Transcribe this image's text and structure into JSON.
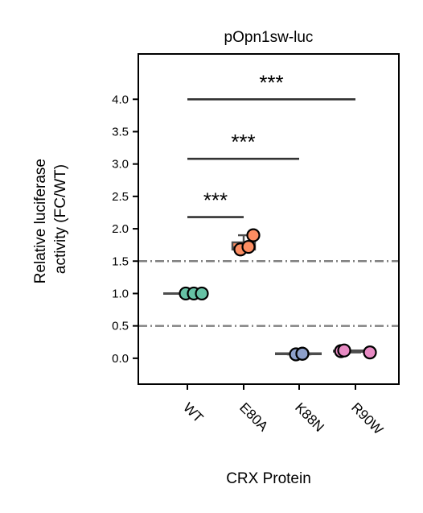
{
  "chart_data": {
    "type": "box",
    "title": "pOpn1sw-luc",
    "xlabel": "CRX Protein",
    "ylabel_lines": [
      "Relative luciferase",
      "activity (FC/WT)"
    ],
    "categories": [
      "WT",
      "E80A",
      "K88N",
      "R90W"
    ],
    "colors": [
      "#66c2a5",
      "#fc8d62",
      "#8da0cb",
      "#e78ac3"
    ],
    "points": [
      [
        1.0,
        1.0,
        1.0
      ],
      [
        1.68,
        1.72,
        1.9
      ],
      [
        0.06,
        0.07,
        0.07
      ],
      [
        0.11,
        0.12,
        0.09
      ]
    ],
    "boxes": [
      {
        "q1": 1.0,
        "median": 1.0,
        "q3": 1.0,
        "low": 1.0,
        "high": 1.0
      },
      {
        "q1": 1.68,
        "median": 1.71,
        "q3": 1.79,
        "low": 1.68,
        "high": 1.9
      },
      {
        "q1": 0.06,
        "median": 0.07,
        "q3": 0.07,
        "low": 0.06,
        "high": 0.07
      },
      {
        "q1": 0.1,
        "median": 0.11,
        "q3": 0.12,
        "low": 0.09,
        "high": 0.12
      }
    ],
    "yticks": [
      "0.0",
      "0.5",
      "1.0",
      "1.5",
      "2.0",
      "2.5",
      "3.0",
      "3.5",
      "4.0"
    ],
    "ylim": [
      -0.4,
      4.7
    ],
    "reference_lines": [
      0.5,
      1.5
    ],
    "significance": [
      {
        "from": "WT",
        "to": "E80A",
        "y": 2.18,
        "label": "***"
      },
      {
        "from": "WT",
        "to": "K88N",
        "y": 3.08,
        "label": "***"
      },
      {
        "from": "WT",
        "to": "R90W",
        "y": 4.0,
        "label": "***"
      }
    ],
    "grid": false,
    "legend": "none"
  }
}
